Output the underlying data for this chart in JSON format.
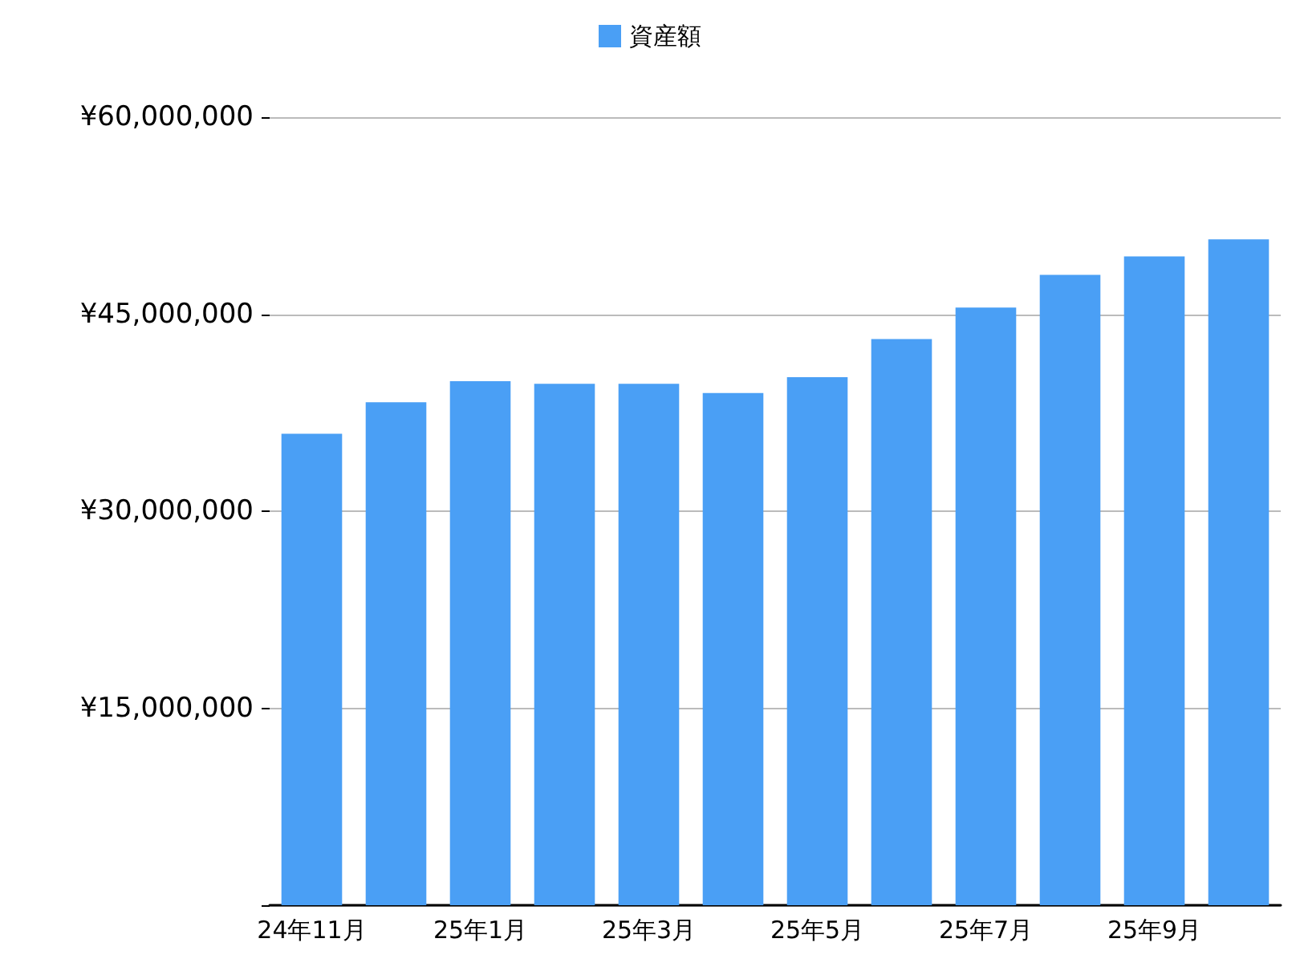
{
  "chart_data": {
    "type": "bar",
    "categories": [
      "24年11月",
      null,
      "25年1月",
      null,
      "25年3月",
      null,
      "25年5月",
      null,
      "25年7月",
      null,
      "25年9月",
      null
    ],
    "series": [
      {
        "name": "資産額",
        "color": "#4a9ff5",
        "values": [
          35900000,
          38300000,
          39900000,
          39700000,
          39700000,
          39000000,
          40200000,
          43100000,
          45500000,
          48000000,
          49400000,
          50700000
        ]
      }
    ],
    "ylim": [
      0,
      60000000
    ],
    "yticks": [
      {
        "value": 0,
        "label": null
      },
      {
        "value": 15000000,
        "label": "¥15,000,000"
      },
      {
        "value": 30000000,
        "label": "¥30,000,000"
      },
      {
        "value": 45000000,
        "label": "¥45,000,000"
      },
      {
        "value": 60000000,
        "label": "¥60,000,000"
      }
    ],
    "grid": "y",
    "legend": "top"
  }
}
